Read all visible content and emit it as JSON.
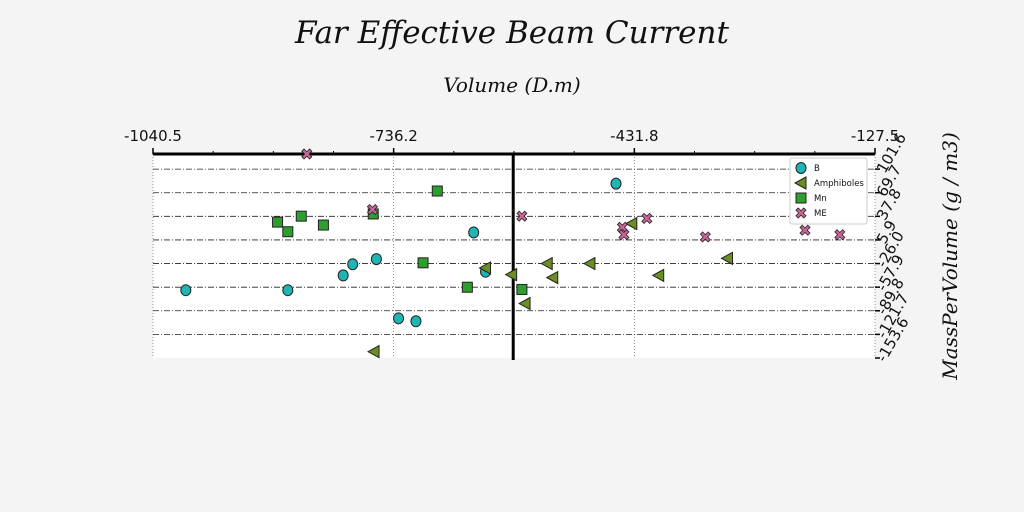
{
  "chart_data": {
    "type": "scatter",
    "title": "Far Effective Beam Current",
    "xlabel": "Volume (D.m)",
    "ylabel": "MassPerVolume (g / m3)",
    "xlim": [
      -1040.5,
      -127.5
    ],
    "ylim": [
      -153.6,
      122
    ],
    "x_ticks": [
      "-1040.5",
      "-736.2",
      "-431.8",
      "-127.5"
    ],
    "y_ticks": [
      {
        "value": 101.6,
        "label": "101.6"
      },
      {
        "value": 69.7,
        "label": "69.7"
      },
      {
        "value": 37.8,
        "label": "37.8"
      },
      {
        "value": 5.9,
        "label": "5.9"
      },
      {
        "value": -26.0,
        "label": "-26.0"
      },
      {
        "value": -57.9,
        "label": "-57.9"
      },
      {
        "value": -89.8,
        "label": "-89.8"
      },
      {
        "value": -121.7,
        "label": "-121.7"
      },
      {
        "value": -153.6,
        "label": "-153.6"
      }
    ],
    "x_zero_line": -585.0,
    "grid": "horizontal dash-dot and vertical dotted",
    "legend_position": "top-right",
    "series": [
      {
        "name": "B",
        "marker": "circle",
        "color": "#1fb5b5",
        "points": [
          [
            -999,
            -62
          ],
          [
            -870,
            -62
          ],
          [
            -800,
            -42
          ],
          [
            -788,
            -27
          ],
          [
            -758,
            -20
          ],
          [
            -730,
            -100
          ],
          [
            -708,
            -104
          ],
          [
            -635,
            16
          ],
          [
            -620,
            -37
          ],
          [
            -455,
            82
          ]
        ]
      },
      {
        "name": "Amphiboles",
        "marker": "triangle-left",
        "color": "#6b8e23",
        "points": [
          [
            -761,
            -145
          ],
          [
            -620,
            -32
          ],
          [
            -587,
            -41
          ],
          [
            -570,
            -80
          ],
          [
            -542,
            -26
          ],
          [
            -535,
            -45
          ],
          [
            -488,
            -26
          ],
          [
            -435,
            28
          ],
          [
            -401,
            -42
          ],
          [
            -314,
            -19
          ]
        ]
      },
      {
        "name": "Mn",
        "marker": "square",
        "color": "#2e9e2e",
        "points": [
          [
            -883,
            30
          ],
          [
            -870,
            17
          ],
          [
            -853,
            38
          ],
          [
            -825,
            26
          ],
          [
            -762,
            41
          ],
          [
            -681,
            72
          ],
          [
            -699,
            -25
          ],
          [
            -643,
            -58
          ],
          [
            -574,
            -61
          ]
        ]
      },
      {
        "name": "ME",
        "marker": "x",
        "color": "#cc6699",
        "points": [
          [
            -846,
            122
          ],
          [
            -763,
            47
          ],
          [
            -574,
            38
          ],
          [
            -447,
            23
          ],
          [
            -445,
            13
          ],
          [
            -416,
            35
          ],
          [
            -342,
            10
          ],
          [
            -216,
            19
          ],
          [
            -172,
            13
          ]
        ]
      }
    ]
  }
}
